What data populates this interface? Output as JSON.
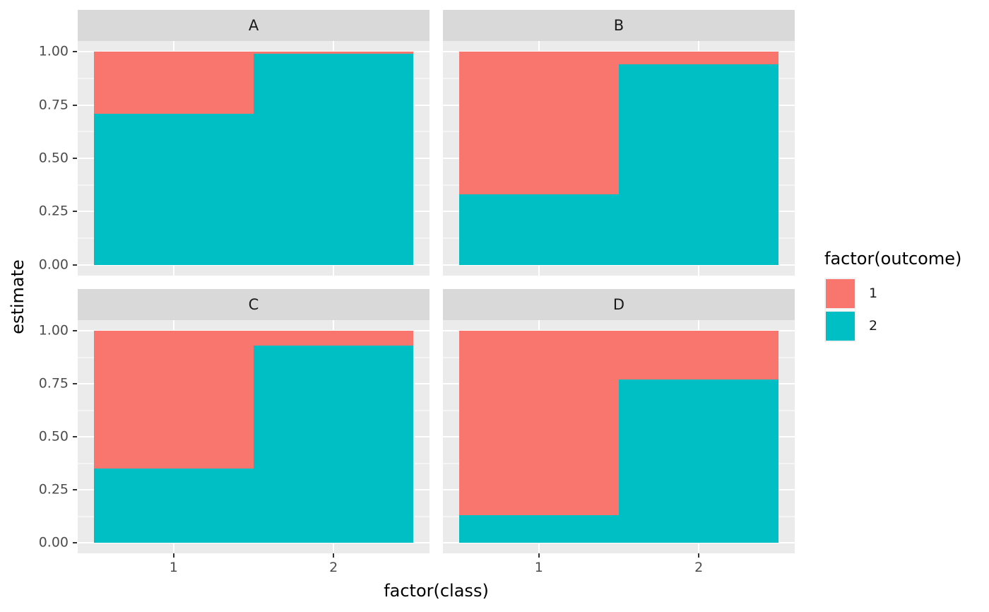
{
  "chart_data": {
    "type": "bar",
    "variant": "stacked-fill-faceted-2x2",
    "title": "",
    "xlabel": "factor(class)",
    "ylabel": "estimate",
    "x_ticks": [
      "1",
      "2"
    ],
    "y_ticks": [
      "1.00",
      "0.75",
      "0.50",
      "0.25",
      "0.00"
    ],
    "ylim": [
      0,
      1
    ],
    "grid": "major-white-on-grey",
    "legend": {
      "title": "factor(outcome)",
      "position": "right",
      "entries": [
        {
          "label": "1",
          "color": "#F8766D"
        },
        {
          "label": "2",
          "color": "#00BFC4"
        }
      ]
    },
    "facets": [
      {
        "label": "A",
        "bars": [
          {
            "class": "1",
            "outcome1": 0.29,
            "outcome2": 0.71
          },
          {
            "class": "2",
            "outcome1": 0.01,
            "outcome2": 0.99
          }
        ]
      },
      {
        "label": "B",
        "bars": [
          {
            "class": "1",
            "outcome1": 0.67,
            "outcome2": 0.33
          },
          {
            "class": "2",
            "outcome1": 0.06,
            "outcome2": 0.94
          }
        ]
      },
      {
        "label": "C",
        "bars": [
          {
            "class": "1",
            "outcome1": 0.65,
            "outcome2": 0.35
          },
          {
            "class": "2",
            "outcome1": 0.07,
            "outcome2": 0.93
          }
        ]
      },
      {
        "label": "D",
        "bars": [
          {
            "class": "1",
            "outcome1": 0.87,
            "outcome2": 0.13
          },
          {
            "class": "2",
            "outcome1": 0.23,
            "outcome2": 0.77
          }
        ]
      }
    ],
    "theme_colors": {
      "panel_background": "#EBEBEB",
      "strip_background": "#D9D9D9",
      "gridline": "#FFFFFF",
      "tick_label": "#4D4D4D",
      "tick_mark": "#333333",
      "text": "#000000",
      "legend_key_background": "#F2F2F2"
    }
  }
}
